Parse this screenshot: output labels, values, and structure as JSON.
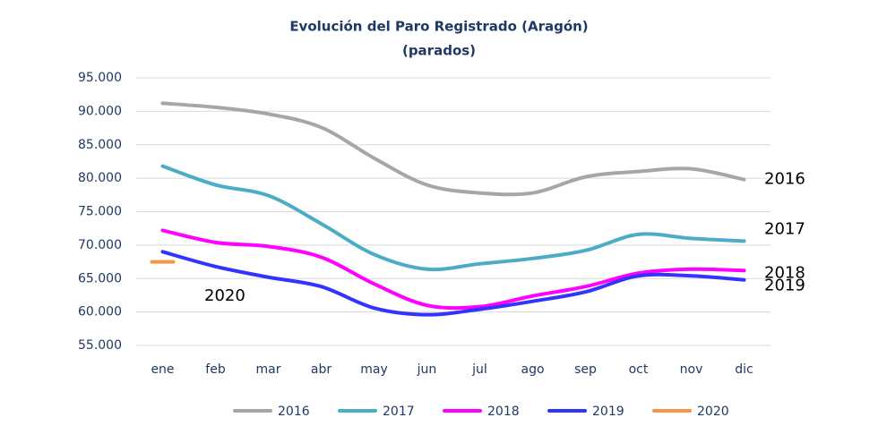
{
  "chart_data": {
    "type": "line",
    "title": "Evolución del Paro Registrado (Aragón)",
    "subtitle": "(parados)",
    "categories": [
      "ene",
      "feb",
      "mar",
      "abr",
      "may",
      "jun",
      "jul",
      "ago",
      "sep",
      "oct",
      "nov",
      "dic"
    ],
    "series": [
      {
        "name": "2016",
        "color": "#a6a6a6",
        "values": [
          91200,
          90600,
          89600,
          87600,
          83000,
          79000,
          77800,
          77800,
          80200,
          81000,
          81400,
          79800
        ]
      },
      {
        "name": "2017",
        "color": "#4bacc6",
        "values": [
          81800,
          79000,
          77400,
          73200,
          68600,
          66400,
          67200,
          68000,
          69200,
          71600,
          71000,
          70600
        ]
      },
      {
        "name": "2018",
        "color": "#ff00ff",
        "values": [
          72200,
          70400,
          69800,
          68200,
          64200,
          61000,
          60800,
          62400,
          63800,
          65800,
          66400,
          66200
        ]
      },
      {
        "name": "2019",
        "color": "#3333ff",
        "values": [
          69000,
          66800,
          65200,
          63800,
          60600,
          59600,
          60400,
          61600,
          63000,
          65400,
          65400,
          64800
        ]
      },
      {
        "name": "2020",
        "color": "#f79646",
        "values": [
          67500,
          null,
          null,
          null,
          null,
          null,
          null,
          null,
          null,
          null,
          null,
          null
        ]
      }
    ],
    "ylim": [
      55000,
      95000
    ],
    "yticks": [
      {
        "value": 55000,
        "label": "55.000"
      },
      {
        "value": 60000,
        "label": "60.000"
      },
      {
        "value": 65000,
        "label": "65.000"
      },
      {
        "value": 70000,
        "label": "70.000"
      },
      {
        "value": 75000,
        "label": "75.000"
      },
      {
        "value": 80000,
        "label": "80.000"
      },
      {
        "value": 85000,
        "label": "85.000"
      },
      {
        "value": 90000,
        "label": "90.000"
      },
      {
        "value": 95000,
        "label": "95.000"
      }
    ],
    "grid": true,
    "legend": "bottom"
  }
}
